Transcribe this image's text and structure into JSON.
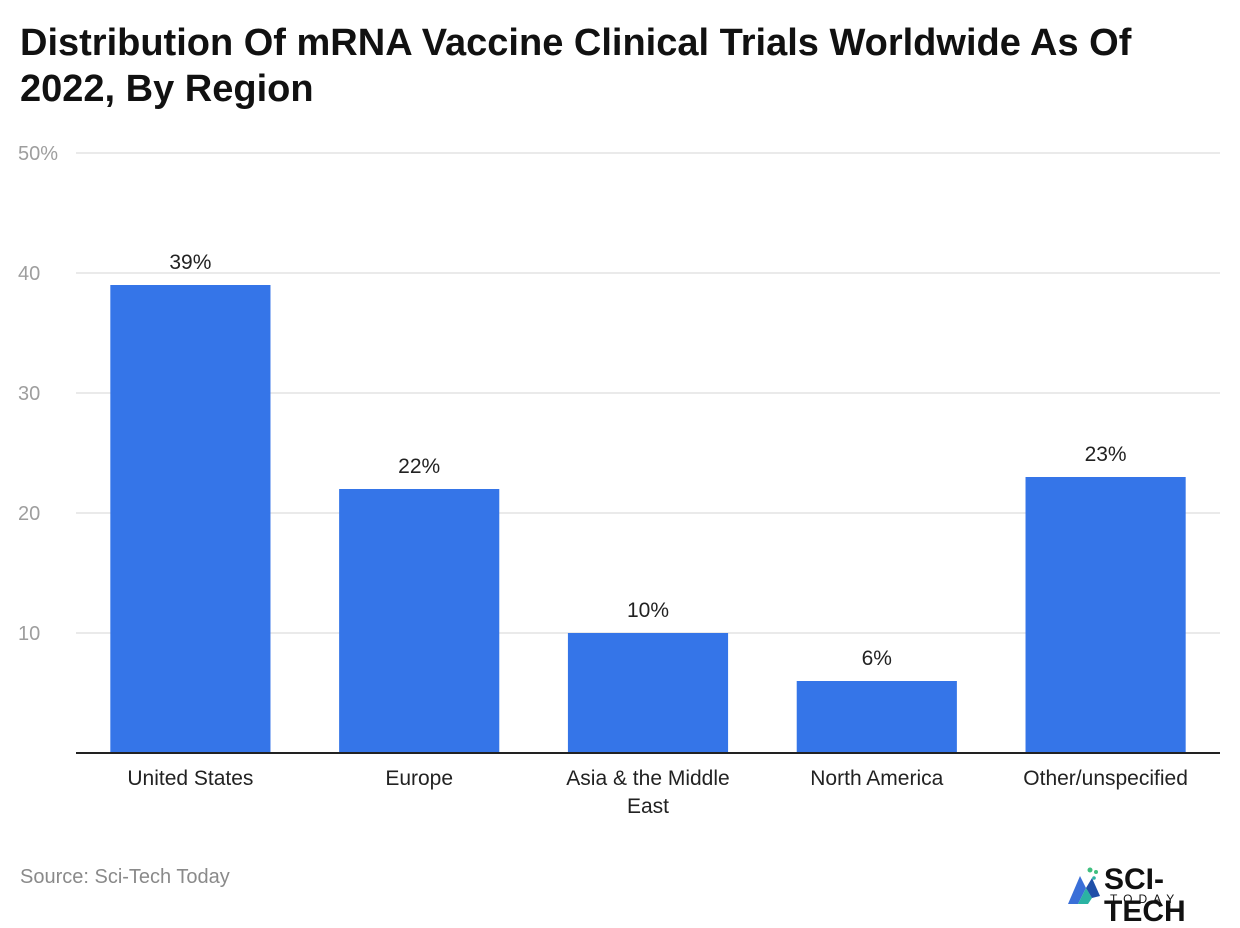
{
  "chart_data": {
    "type": "bar",
    "title": "Distribution Of mRNA Vaccine Clinical Trials Worldwide As Of 2022, By Region",
    "categories": [
      "United States",
      "Europe",
      "Asia & the Middle East",
      "North America",
      "Other/unspecified"
    ],
    "category_lines": [
      [
        "United States"
      ],
      [
        "Europe"
      ],
      [
        "Asia & the Middle",
        "East"
      ],
      [
        "North America"
      ],
      [
        "Other/unspecified"
      ]
    ],
    "values": [
      39,
      22,
      10,
      6,
      23
    ],
    "data_labels": [
      "39%",
      "22%",
      "10%",
      "6%",
      "23%"
    ],
    "yticks": [
      10,
      20,
      30,
      40,
      50
    ],
    "ytick_labels": [
      "10",
      "20",
      "30",
      "40",
      "50%"
    ],
    "ylim": [
      0,
      50
    ],
    "xlabel": "",
    "ylabel": "",
    "grid": true,
    "bar_color": "#3575e8"
  },
  "footer": {
    "source": "Source: Sci-Tech Today",
    "logo_word": "SCI-TECH",
    "logo_sub": "TODAY"
  }
}
